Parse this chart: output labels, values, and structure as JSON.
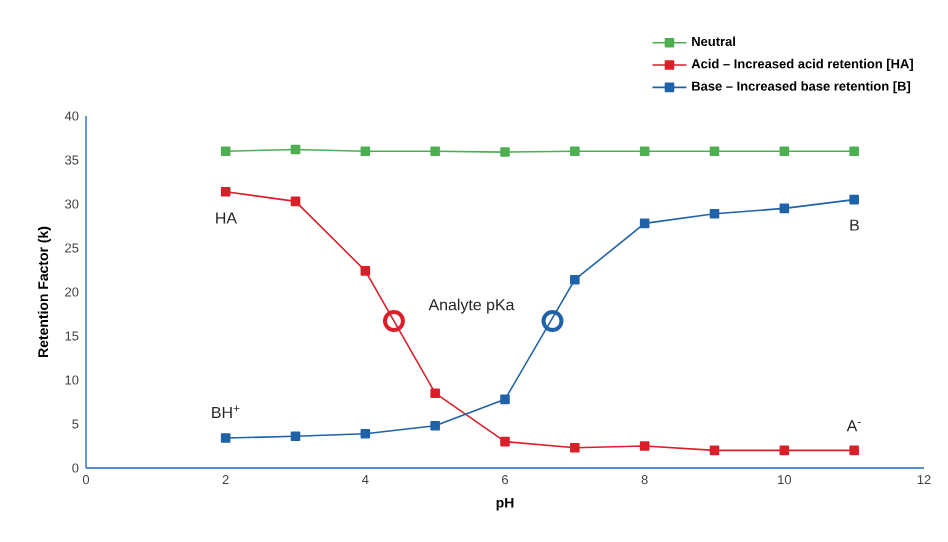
{
  "chart_data": {
    "type": "line",
    "xlabel": "pH",
    "ylabel": "Retention Factor (k)",
    "x": [
      2,
      3,
      4,
      5,
      6,
      7,
      8,
      9,
      10,
      11
    ],
    "xlim": [
      0,
      12
    ],
    "xticks": [
      0,
      2,
      4,
      6,
      8,
      10,
      12
    ],
    "ylim": [
      0,
      40
    ],
    "yticks": [
      0,
      5,
      10,
      15,
      20,
      25,
      30,
      35,
      40
    ],
    "grid": false,
    "legend": "top right",
    "marker": "square",
    "series": [
      {
        "name": "Neutral",
        "color": "#4caf50",
        "values": [
          36,
          36.2,
          36,
          36,
          35.9,
          36,
          36,
          36,
          36,
          36
        ]
      },
      {
        "name": "Acid – Increased acid retention [HA]",
        "color": "#d9202a",
        "values": [
          31.4,
          30.3,
          22.4,
          8.5,
          3.0,
          2.3,
          2.5,
          2.0,
          2.0,
          2.0
        ]
      },
      {
        "name": "Base – Increased base retention [B]",
        "color": "#1f62a8",
        "values": [
          3.4,
          3.6,
          3.9,
          4.8,
          7.8,
          21.4,
          27.8,
          28.9,
          29.5,
          30.5
        ]
      },
      {
        "type": "scatter",
        "color": "#d9202a",
        "marker": "circle",
        "x": [
          4.41
        ],
        "values": [
          16.7
        ]
      },
      {
        "type": "scatter",
        "color": "#1f62a8",
        "marker": "circle",
        "x": [
          6.68
        ],
        "values": [
          16.7
        ]
      }
    ],
    "annotations": [
      "HA",
      "B",
      "BH$^{+}$",
      "A$^{-}$",
      "Analyte pKa"
    ]
  }
}
